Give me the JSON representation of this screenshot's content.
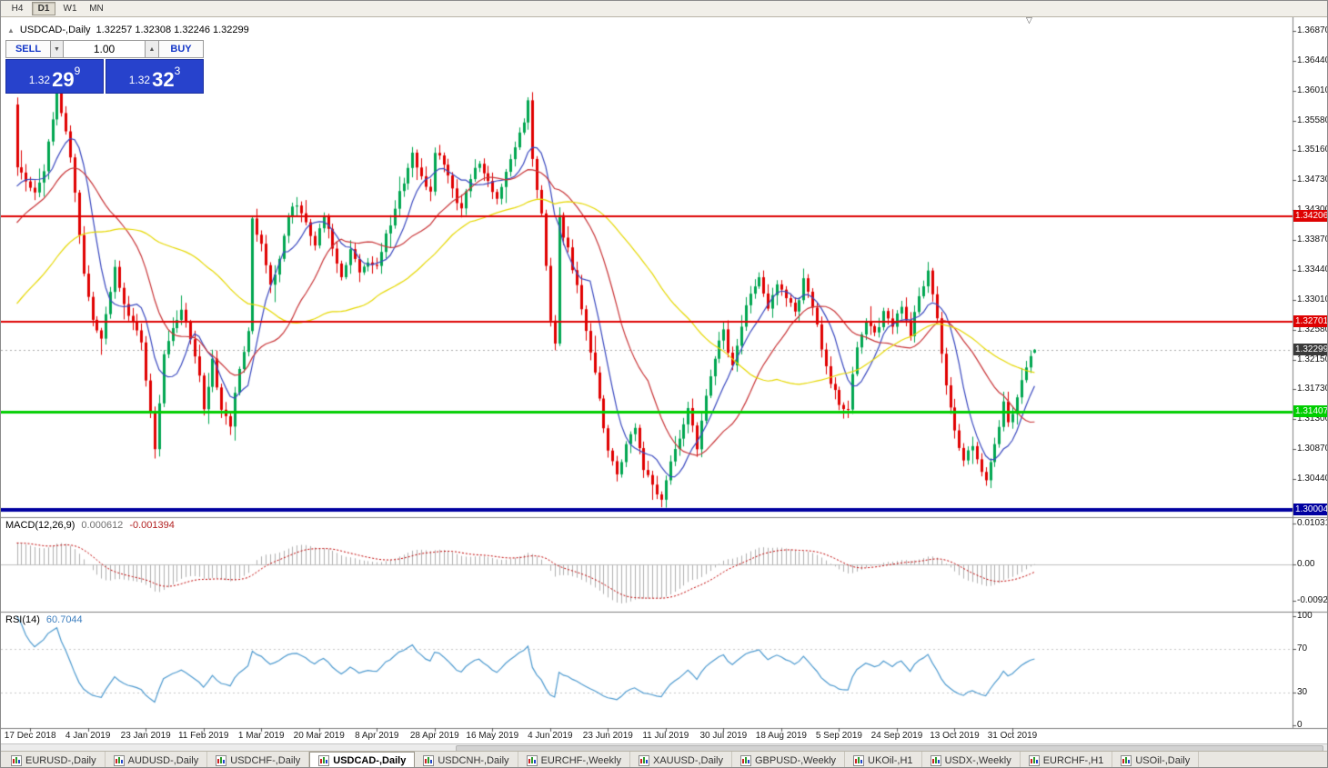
{
  "toolbar": {
    "timeframes": [
      {
        "label": "H4",
        "active": false
      },
      {
        "label": "D1",
        "active": true
      },
      {
        "label": "W1",
        "active": false
      },
      {
        "label": "MN",
        "active": false
      }
    ]
  },
  "chart": {
    "title": "USDCAD-,Daily",
    "ohlc": "1.32257 1.32308 1.32246 1.32299"
  },
  "icons": {
    "collapse": "▲",
    "spin_up": "▲",
    "spin_down": "▼",
    "shift_marker": "▽"
  },
  "trade_panel": {
    "sell_label": "SELL",
    "buy_label": "BUY",
    "volume": "1.00",
    "sell_price_small": "1.32",
    "sell_price_big": "29",
    "sell_price_sup": "9",
    "buy_price_small": "1.32",
    "buy_price_big": "32",
    "buy_price_sup": "3"
  },
  "chart_data": {
    "type": "candlestick",
    "symbol": "USDCAD-",
    "timeframe": "Daily",
    "last": {
      "open": 1.32257,
      "high": 1.32308,
      "low": 1.32246,
      "close": 1.32299
    },
    "bid": 1.32299,
    "bid_label": "1.32299",
    "y_ticks": [
      "1.36870",
      "1.36440",
      "1.36010",
      "1.35580",
      "1.35160",
      "1.34730",
      "1.34300",
      "1.33870",
      "1.33440",
      "1.33010",
      "1.32580",
      "1.32150",
      "1.31730",
      "1.31300",
      "1.30870",
      "1.30440"
    ],
    "x_labels": [
      "17 Dec 2018",
      "4 Jan 2019",
      "23 Jan 2019",
      "11 Feb 2019",
      "1 Mar 2019",
      "20 Mar 2019",
      "8 Apr 2019",
      "28 Apr 2019",
      "16 May 2019",
      "4 Jun 2019",
      "23 Jun 2019",
      "11 Jul 2019",
      "30 Jul 2019",
      "18 Aug 2019",
      "5 Sep 2019",
      "24 Sep 2019",
      "13 Oct 2019",
      "31 Oct 2019"
    ],
    "levels": [
      {
        "price": 1.34206,
        "label": "1.34206",
        "color": "#de0202",
        "width": 2
      },
      {
        "price": 1.32701,
        "label": "1.32701",
        "color": "#de0202",
        "width": 2
      },
      {
        "price": 1.31407,
        "label": "1.31407",
        "color": "#00ce00",
        "width": 3
      },
      {
        "price": 1.30004,
        "label": "1.30004",
        "color": "#0000a0",
        "width": 4
      }
    ],
    "bars_visible": 230,
    "warmup_bars": 55,
    "noise_seed": 20191108,
    "anchors": [
      [
        0,
        1.3495
      ],
      [
        2,
        1.347
      ],
      [
        4,
        1.3452
      ],
      [
        6,
        1.3488
      ],
      [
        8,
        1.3562
      ],
      [
        9,
        1.3595
      ],
      [
        11,
        1.3548
      ],
      [
        13,
        1.346
      ],
      [
        15,
        1.3335
      ],
      [
        17,
        1.327
      ],
      [
        19,
        1.3248
      ],
      [
        21,
        1.331
      ],
      [
        22,
        1.3345
      ],
      [
        24,
        1.329
      ],
      [
        26,
        1.3272
      ],
      [
        28,
        1.3245
      ],
      [
        30,
        1.3135
      ],
      [
        31,
        1.3092
      ],
      [
        33,
        1.3225
      ],
      [
        35,
        1.3262
      ],
      [
        37,
        1.3292
      ],
      [
        39,
        1.325
      ],
      [
        41,
        1.3198
      ],
      [
        42,
        1.3148
      ],
      [
        44,
        1.3212
      ],
      [
        46,
        1.314
      ],
      [
        48,
        1.3125
      ],
      [
        50,
        1.3202
      ],
      [
        52,
        1.3262
      ],
      [
        53,
        1.3418
      ],
      [
        55,
        1.338
      ],
      [
        57,
        1.3322
      ],
      [
        59,
        1.3362
      ],
      [
        61,
        1.3422
      ],
      [
        63,
        1.3442
      ],
      [
        65,
        1.3408
      ],
      [
        67,
        1.338
      ],
      [
        69,
        1.342
      ],
      [
        71,
        1.3378
      ],
      [
        73,
        1.333
      ],
      [
        75,
        1.3372
      ],
      [
        77,
        1.3342
      ],
      [
        79,
        1.3356
      ],
      [
        81,
        1.3346
      ],
      [
        83,
        1.3392
      ],
      [
        85,
        1.3432
      ],
      [
        87,
        1.3472
      ],
      [
        89,
        1.3512
      ],
      [
        91,
        1.3478
      ],
      [
        93,
        1.3452
      ],
      [
        94,
        1.3516
      ],
      [
        96,
        1.3498
      ],
      [
        98,
        1.3458
      ],
      [
        100,
        1.3432
      ],
      [
        102,
        1.3472
      ],
      [
        104,
        1.35
      ],
      [
        106,
        1.3468
      ],
      [
        108,
        1.3442
      ],
      [
        110,
        1.3482
      ],
      [
        112,
        1.3522
      ],
      [
        114,
        1.3558
      ],
      [
        115,
        1.3582
      ],
      [
        116,
        1.3502
      ],
      [
        118,
        1.3422
      ],
      [
        120,
        1.3272
      ],
      [
        121,
        1.3242
      ],
      [
        122,
        1.3418
      ],
      [
        124,
        1.3372
      ],
      [
        126,
        1.3322
      ],
      [
        128,
        1.3262
      ],
      [
        130,
        1.3192
      ],
      [
        132,
        1.3122
      ],
      [
        133,
        1.3082
      ],
      [
        135,
        1.3052
      ],
      [
        137,
        1.3092
      ],
      [
        139,
        1.3118
      ],
      [
        141,
        1.3062
      ],
      [
        143,
        1.3032
      ],
      [
        145,
        1.3012
      ],
      [
        147,
        1.3068
      ],
      [
        149,
        1.3102
      ],
      [
        151,
        1.3142
      ],
      [
        153,
        1.3092
      ],
      [
        155,
        1.3162
      ],
      [
        157,
        1.3222
      ],
      [
        159,
        1.3258
      ],
      [
        161,
        1.3202
      ],
      [
        163,
        1.3268
      ],
      [
        165,
        1.3312
      ],
      [
        167,
        1.3338
      ],
      [
        169,
        1.3292
      ],
      [
        171,
        1.3322
      ],
      [
        173,
        1.3302
      ],
      [
        175,
        1.3282
      ],
      [
        177,
        1.3328
      ],
      [
        179,
        1.3292
      ],
      [
        181,
        1.3232
      ],
      [
        183,
        1.3182
      ],
      [
        185,
        1.3152
      ],
      [
        187,
        1.3142
      ],
      [
        189,
        1.3238
      ],
      [
        191,
        1.3272
      ],
      [
        193,
        1.3252
      ],
      [
        195,
        1.3282
      ],
      [
        197,
        1.3262
      ],
      [
        199,
        1.3292
      ],
      [
        201,
        1.3252
      ],
      [
        203,
        1.3308
      ],
      [
        205,
        1.3338
      ],
      [
        207,
        1.3272
      ],
      [
        209,
        1.3182
      ],
      [
        211,
        1.3112
      ],
      [
        213,
        1.3072
      ],
      [
        215,
        1.3092
      ],
      [
        217,
        1.3052
      ],
      [
        218,
        1.3042
      ],
      [
        220,
        1.3092
      ],
      [
        222,
        1.3152
      ],
      [
        223,
        1.3122
      ],
      [
        225,
        1.3162
      ],
      [
        227,
        1.3202
      ],
      [
        229,
        1.323
      ]
    ],
    "ma": [
      {
        "period": 8,
        "color": "#3a49c0"
      },
      {
        "period": 21,
        "color": "#c93538"
      },
      {
        "period": 50,
        "color": "#e6d800"
      }
    ]
  },
  "macd_panel": {
    "label": "MACD(12,26,9)",
    "value1": "0.000612",
    "value2": "-0.001394",
    "axis_ticks": [
      "0.010311",
      "0.00",
      "-0.009203"
    ],
    "axis_values": [
      0.010311,
      0,
      -0.009203
    ]
  },
  "rsi_panel": {
    "label": "RSI(14)",
    "value": "60.7044",
    "axis_ticks": [
      "100",
      "70",
      "30",
      "0"
    ],
    "axis_values": [
      100,
      70,
      30,
      0
    ],
    "levels": [
      70,
      30
    ]
  },
  "tabs": [
    {
      "label": "EURUSD-,Daily",
      "active": false
    },
    {
      "label": "AUDUSD-,Daily",
      "active": false
    },
    {
      "label": "USDCHF-,Daily",
      "active": false
    },
    {
      "label": "USDCAD-,Daily",
      "active": true
    },
    {
      "label": "USDCNH-,Daily",
      "active": false
    },
    {
      "label": "EURCHF-,Weekly",
      "active": false
    },
    {
      "label": "XAUUSD-,Daily",
      "active": false
    },
    {
      "label": "GBPUSD-,Weekly",
      "active": false
    },
    {
      "label": "UKOil-,H1",
      "active": false
    },
    {
      "label": "USDX-,Weekly",
      "active": false
    },
    {
      "label": "EURCHF-,H1",
      "active": false
    },
    {
      "label": "USOil-,Daily",
      "active": false
    }
  ],
  "colors": {
    "candle_up": "#00a650",
    "candle_down": "#e00000",
    "macd_hist": "#b0b0b0",
    "macd_signal": "#c00000",
    "rsi_line": "#4f9bd0",
    "bid_box": "#3a3a3a",
    "trade_button_blue": "#2742cc"
  }
}
